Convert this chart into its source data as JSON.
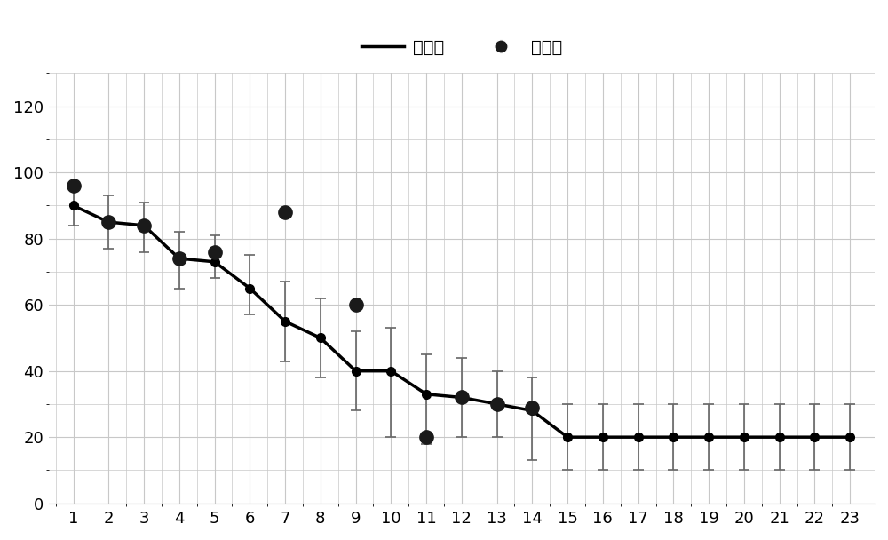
{
  "x": [
    1,
    2,
    3,
    4,
    5,
    6,
    7,
    8,
    9,
    10,
    11,
    12,
    13,
    14,
    15,
    16,
    17,
    18,
    19,
    20,
    21,
    22,
    23
  ],
  "normal_values": [
    90,
    85,
    84,
    74,
    73,
    65,
    55,
    50,
    40,
    40,
    33,
    32,
    30,
    28,
    20,
    20,
    20,
    20,
    20,
    20,
    20,
    20,
    20
  ],
  "error_upper": [
    6,
    8,
    7,
    8,
    8,
    10,
    12,
    12,
    12,
    13,
    12,
    12,
    10,
    10,
    10,
    10,
    10,
    10,
    10,
    10,
    10,
    10,
    10
  ],
  "error_lower": [
    6,
    8,
    8,
    9,
    5,
    8,
    12,
    12,
    12,
    20,
    15,
    12,
    10,
    15,
    10,
    10,
    10,
    10,
    10,
    10,
    10,
    10,
    10
  ],
  "actual_values_x": [
    1,
    2,
    3,
    4,
    5,
    7,
    9,
    11,
    12,
    13,
    14
  ],
  "actual_values_y": [
    96,
    85,
    84,
    74,
    76,
    88,
    60,
    20,
    32,
    30,
    29
  ],
  "line_color": "#000000",
  "dot_color": "#1a1a1a",
  "error_color": "#666666",
  "background_color": "#ffffff",
  "grid_color": "#c8c8c8",
  "legend_label_normal": "正常値",
  "legend_label_actual": "实际値",
  "ylim": [
    0,
    130
  ],
  "yticks": [
    0,
    20,
    40,
    60,
    80,
    100,
    120
  ],
  "xlim": [
    0.3,
    23.7
  ],
  "xticks": [
    1,
    2,
    3,
    4,
    5,
    6,
    7,
    8,
    9,
    10,
    11,
    12,
    13,
    14,
    15,
    16,
    17,
    18,
    19,
    20,
    21,
    22,
    23
  ],
  "font_size": 13,
  "legend_font_size": 14,
  "line_width": 2.5,
  "marker_size": 7,
  "actual_marker_size": 11
}
